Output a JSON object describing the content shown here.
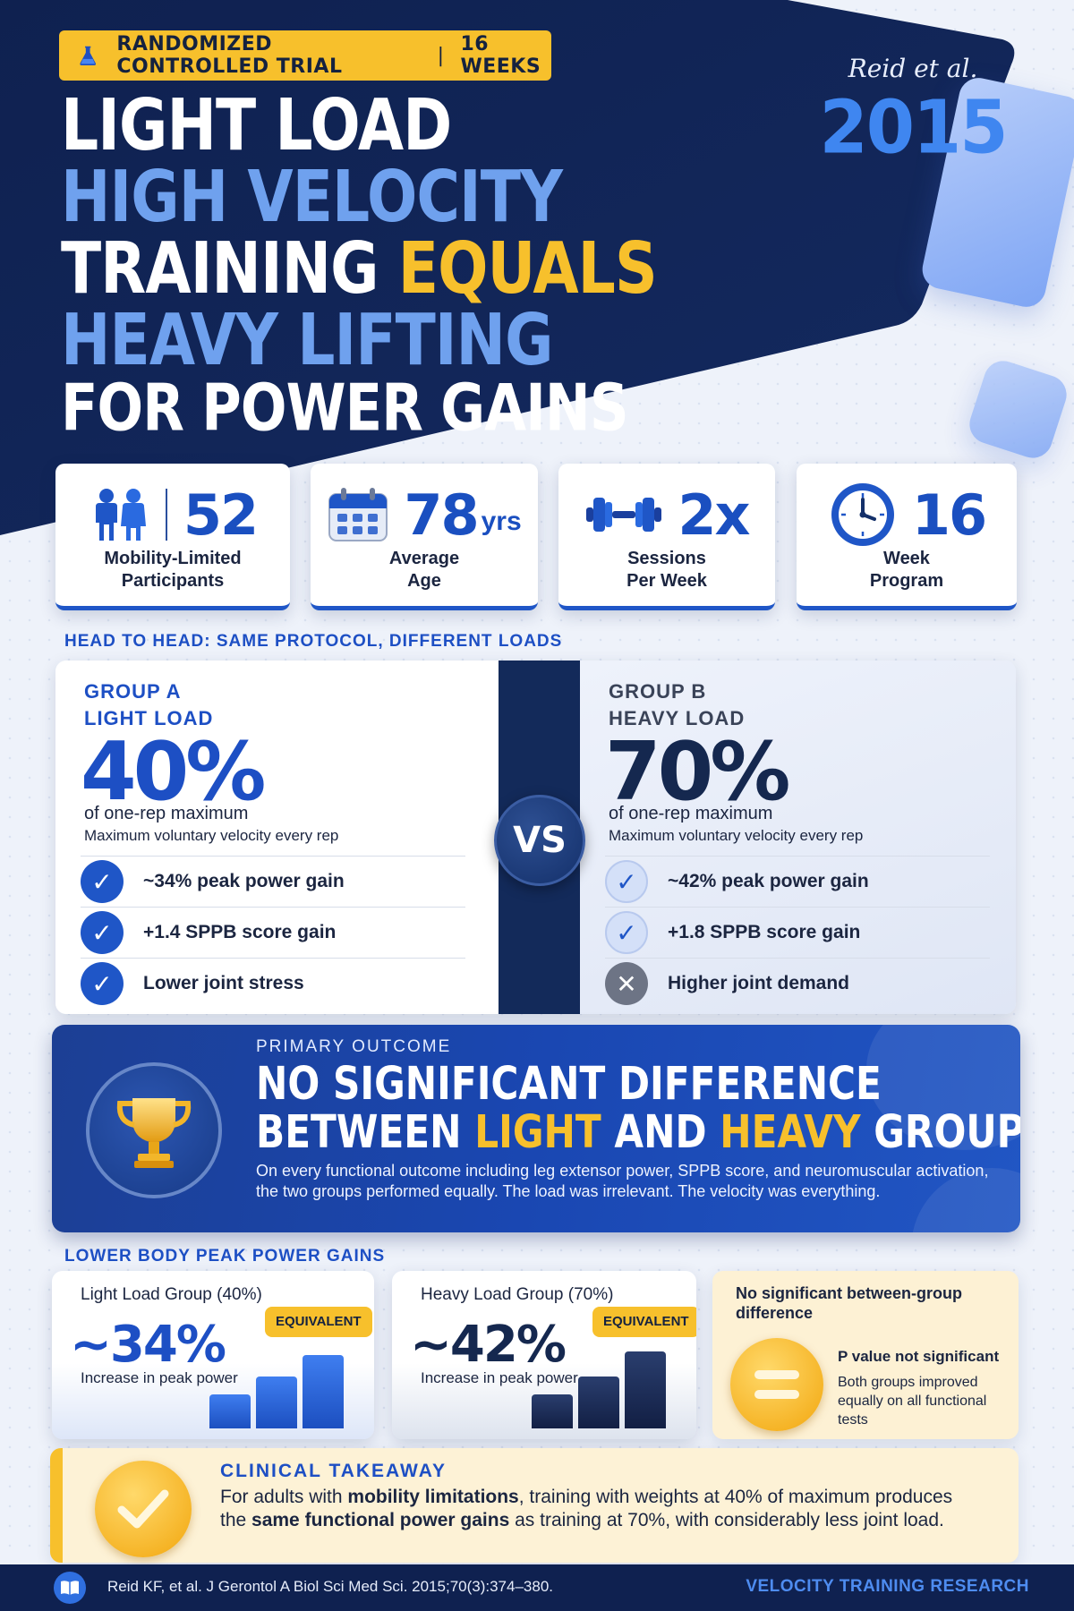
{
  "header": {
    "badge_left": "RANDOMIZED CONTROLLED TRIAL",
    "badge_sep": "|",
    "badge_right": "16 WEEKS",
    "author": "Reid et al.",
    "year": "2015",
    "title_line1": "LIGHT LOAD",
    "title_line2": "HIGH VELOCITY",
    "title_line3_a": "TRAINING ",
    "title_line3_b": "EQUALS",
    "title_line4": "HEAVY LIFTING",
    "title_line5": "FOR POWER GAINS"
  },
  "stats": [
    {
      "value": "52",
      "unit": "",
      "label_1": "Mobility-Limited",
      "label_2": "Participants",
      "icon": "people-icon"
    },
    {
      "value": "78",
      "unit": "yrs",
      "label_1": "Average",
      "label_2": "Age",
      "icon": "calendar-icon"
    },
    {
      "value": "2x",
      "unit": "",
      "label_1": "Sessions",
      "label_2": "Per Week",
      "icon": "dumbbell-icon"
    },
    {
      "value": "16",
      "unit": "",
      "label_1": "Week",
      "label_2": "Program",
      "icon": "clock-icon"
    }
  ],
  "compare": {
    "section_title": "HEAD TO HEAD: SAME PROTOCOL, DIFFERENT LOADS",
    "vs": "VS",
    "group_a": {
      "tag": "GROUP A",
      "name": "LIGHT LOAD",
      "pct": "40%",
      "sub1": "of one-rep maximum",
      "sub2": "Maximum voluntary velocity every rep",
      "items": [
        "~34% peak power gain",
        "+1.4 SPPB score gain",
        "Lower joint stress"
      ],
      "color": "#1d4fc4"
    },
    "group_b": {
      "tag": "GROUP B",
      "name": "HEAVY LOAD",
      "pct": "70%",
      "sub1": "of one-rep maximum",
      "sub2": "Maximum voluntary velocity every rep",
      "items": [
        "~42% peak power gain",
        "+1.8 SPPB score gain",
        "Higher joint demand"
      ],
      "color": "#15284f"
    }
  },
  "outcome": {
    "label": "PRIMARY OUTCOME",
    "head1": "NO SIGNIFICANT DIFFERENCE",
    "head2_a": "BETWEEN ",
    "head2_b": "LIGHT",
    "head2_c": " AND ",
    "head2_d": "HEAVY",
    "head2_e": " GROUPS",
    "body": "On every functional outcome including leg extensor power, SPPB score, and neuromuscular activation, the two groups performed equally. The load was irrelevant. The velocity was everything."
  },
  "power": {
    "section_title": "LOWER BODY PEAK POWER GAINS",
    "light": {
      "title": "Light Load Group (40%)",
      "value": "~34%",
      "sub": "Increase in peak power",
      "badge": "EQUIVALENT",
      "gain_pct": 34
    },
    "heavy": {
      "title": "Heavy Load Group (70%)",
      "value": "~42%",
      "sub": "Increase in peak power",
      "badge": "EQUIVALENT",
      "gain_pct": 42
    },
    "nd": {
      "title": "No significant between-group difference",
      "pval": "P value not significant",
      "desc": "Both groups improved equally on all functional tests"
    }
  },
  "takeaway": {
    "label": "CLINICAL TAKEAWAY",
    "t1": "For adults with ",
    "t2": "mobility limitations",
    "t3": ", training with weights at 40% of maximum produces the ",
    "t4": "same functional power gains",
    "t5": " as training at 70%, with considerably less joint load."
  },
  "footer": {
    "citation": "Reid KF, et al. J Gerontol A Biol Sci Med Sci. 2015;70(3):374–380.",
    "brand": "VELOCITY TRAINING RESEARCH"
  },
  "colors": {
    "navy": "#0f2150",
    "blue": "#1d4fc4",
    "gold": "#f7c02c",
    "light_blue": "#6fa1ee"
  }
}
